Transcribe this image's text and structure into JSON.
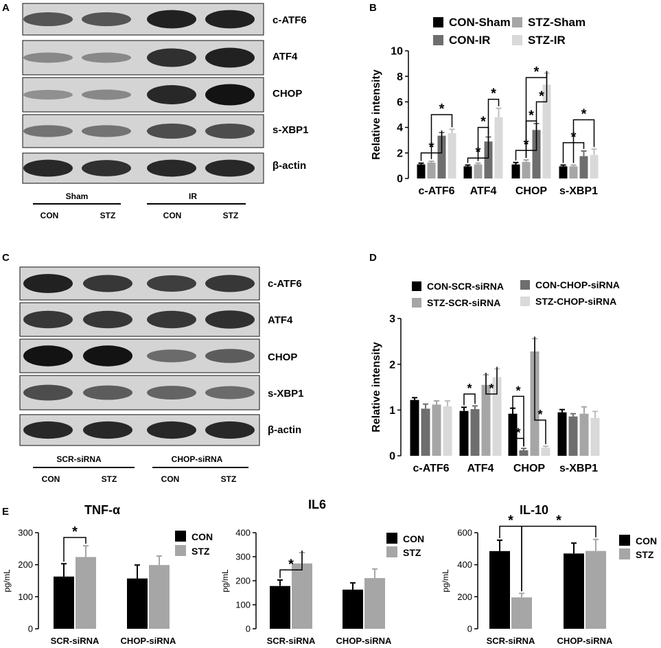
{
  "panel_labels": [
    "A",
    "B",
    "C",
    "D",
    "E"
  ],
  "colors": {
    "black": "#000000",
    "dark_gray": "#6e6e6e",
    "mid_gray": "#a6a6a6",
    "light_gray": "#d9d9d9",
    "blot_bg": "#d4d4d4"
  },
  "blot_A": {
    "bands": [
      "c-ATF6",
      "ATF4",
      "CHOP",
      "s-XBP1",
      "β-actin"
    ],
    "group_labels": [
      "Sham",
      "IR"
    ],
    "lane_labels": [
      "CON",
      "STZ",
      "CON",
      "STZ"
    ]
  },
  "blot_C": {
    "bands": [
      "c-ATF6",
      "ATF4",
      "CHOP",
      "s-XBP1",
      "β-actin"
    ],
    "group_labels": [
      "SCR-siRNA",
      "CHOP-siRNA"
    ],
    "lane_labels": [
      "CON",
      "STZ",
      "CON",
      "STZ"
    ]
  },
  "chart_data": [
    {
      "id": "B",
      "type": "bar",
      "ylabel": "Relative intensity",
      "ylim": [
        0,
        10
      ],
      "yticks": [
        "0",
        "2",
        "4",
        "6",
        "8",
        "10"
      ],
      "categories": [
        "c-ATF6",
        "ATF4",
        "CHOP",
        "s-XBP1"
      ],
      "legend": "top",
      "series": [
        {
          "name": "CON-Sham",
          "color": "#000000",
          "values": [
            1.1,
            0.95,
            1.1,
            0.95
          ],
          "errors": [
            0.1,
            0.1,
            0.15,
            0.1
          ]
        },
        {
          "name": "CON-IR",
          "color": "#6e6e6e",
          "values": [
            3.35,
            2.9,
            3.8,
            1.75
          ],
          "errors": [
            0.25,
            0.35,
            0.5,
            0.4
          ]
        },
        {
          "name": "STZ-Sham",
          "color": "#a6a6a6",
          "values": [
            1.25,
            1.1,
            1.3,
            0.95
          ],
          "errors": [
            0.1,
            0.1,
            0.15,
            0.1
          ]
        },
        {
          "name": "STZ-IR",
          "color": "#d9d9d9",
          "values": [
            3.55,
            4.8,
            7.35,
            1.85
          ],
          "errors": [
            0.3,
            0.7,
            0.9,
            0.45
          ]
        }
      ],
      "order": [
        0,
        2,
        1,
        3
      ],
      "annotation": "*"
    },
    {
      "id": "D",
      "type": "bar",
      "ylabel": "Relative intensity",
      "ylim": [
        0,
        3
      ],
      "yticks": [
        "0",
        "1",
        "2",
        "3"
      ],
      "categories": [
        "c-ATF6",
        "ATF4",
        "CHOP",
        "s-XBP1"
      ],
      "legend": "top",
      "series": [
        {
          "name": "CON-SCR-siRNA",
          "color": "#000000",
          "values": [
            1.22,
            0.98,
            0.92,
            0.95
          ],
          "errors": [
            0.05,
            0.08,
            0.12,
            0.06
          ]
        },
        {
          "name": "STZ-SCR-siRNA",
          "color": "#a6a6a6",
          "values": [
            1.12,
            1.55,
            2.28,
            0.92
          ],
          "errors": [
            0.08,
            0.22,
            0.28,
            0.15
          ]
        },
        {
          "name": "CON-CHOP-siRNA",
          "color": "#6e6e6e",
          "values": [
            1.03,
            1.02,
            0.12,
            0.86
          ],
          "errors": [
            0.1,
            0.07,
            0.04,
            0.06
          ]
        },
        {
          "name": "STZ-CHOP-siRNA",
          "color": "#d9d9d9",
          "values": [
            1.08,
            1.72,
            0.18,
            0.83
          ],
          "errors": [
            0.12,
            0.18,
            0.03,
            0.14
          ]
        }
      ],
      "order": [
        0,
        2,
        1,
        3
      ],
      "annotation": "*"
    },
    {
      "id": "E1",
      "type": "bar",
      "title": "TNF-α",
      "ylabel": "pg/mL",
      "ylim": [
        0,
        300
      ],
      "yticks": [
        "0",
        "100",
        "200",
        "300"
      ],
      "categories": [
        "SCR-siRNA",
        "CHOP-siRNA"
      ],
      "legend": "right",
      "series": [
        {
          "name": "CON",
          "color": "#000000",
          "values": [
            163,
            157
          ],
          "errors": [
            40,
            42
          ]
        },
        {
          "name": "STZ",
          "color": "#a6a6a6",
          "values": [
            224,
            199
          ],
          "errors": [
            35,
            28
          ]
        }
      ],
      "annotation": "*"
    },
    {
      "id": "E2",
      "type": "bar",
      "title": "IL6",
      "ylabel": "pg/mL",
      "ylim": [
        0,
        400
      ],
      "yticks": [
        "0",
        "100",
        "200",
        "300",
        "400"
      ],
      "categories": [
        "SCR-siRNA",
        "CHOP-siRNA"
      ],
      "legend": "right",
      "series": [
        {
          "name": "CON",
          "color": "#000000",
          "values": [
            178,
            163
          ],
          "errors": [
            25,
            28
          ]
        },
        {
          "name": "STZ",
          "color": "#a6a6a6",
          "values": [
            272,
            211
          ],
          "errors": [
            45,
            38
          ]
        }
      ],
      "annotation": "*"
    },
    {
      "id": "E3",
      "type": "bar",
      "title": "IL-10",
      "ylabel": "pg/mL",
      "ylim": [
        0,
        600
      ],
      "yticks": [
        "0",
        "200",
        "400",
        "600"
      ],
      "categories": [
        "SCR-siRNA",
        "CHOP-siRNA"
      ],
      "legend": "right",
      "series": [
        {
          "name": "CON",
          "color": "#000000",
          "values": [
            485,
            470
          ],
          "errors": [
            68,
            65
          ]
        },
        {
          "name": "STZ",
          "color": "#a6a6a6",
          "values": [
            196,
            486
          ],
          "errors": [
            25,
            72
          ]
        }
      ],
      "annotation": "*"
    }
  ]
}
